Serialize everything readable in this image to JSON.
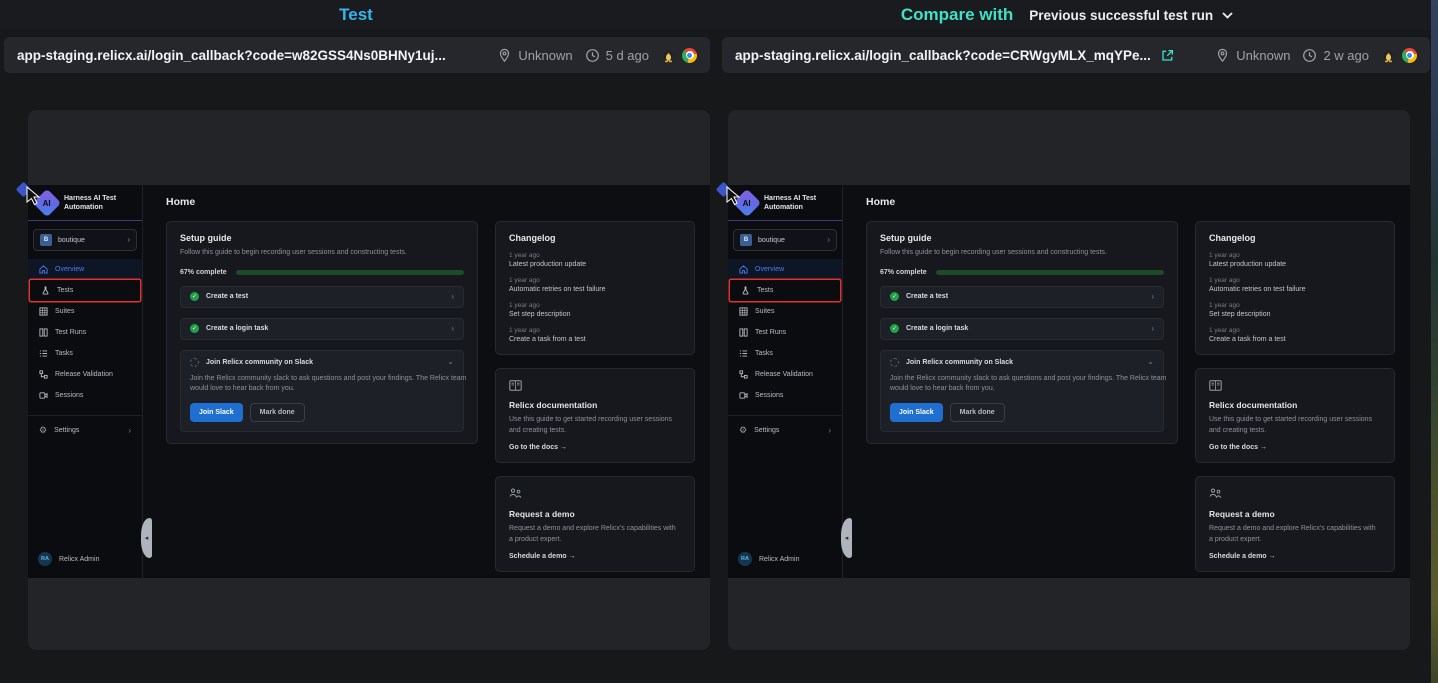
{
  "header": {
    "left_title": "Test",
    "compare_label": "Compare with",
    "compare_value": "Previous successful test run"
  },
  "url_bars": {
    "left": {
      "url": "app-staging.relicx.ai/login_callback?code=w82GSS4Ns0BHNy1uj...",
      "location": "Unknown",
      "age": "5 d ago"
    },
    "right": {
      "url": "app-staging.relicx.ai/login_callback?code=CRWgyMLX_mqYPe...",
      "location": "Unknown",
      "age": "2 w ago"
    }
  },
  "icons": {
    "chevron_right": "›",
    "chevron_down": "⌄",
    "gear": "⚙",
    "check": "✓",
    "collapse_arrow": "◂"
  },
  "colors": {
    "test_title": "#35b6ee",
    "compare_title": "#3fe2c4",
    "highlight_box_red": "#e0332b",
    "progress_green": "#35a74c",
    "primary_button_blue": "#1e6fd0",
    "active_nav_blue": "#467ff2"
  },
  "app": {
    "brand": {
      "line1": "Harness AI Test",
      "line2": "Automation"
    },
    "project": {
      "initial": "B",
      "name": "boutique"
    },
    "nav": [
      {
        "label": "Overview"
      },
      {
        "label": "Tests"
      },
      {
        "label": "Suites"
      },
      {
        "label": "Test Runs"
      },
      {
        "label": "Tasks"
      },
      {
        "label": "Release Validation"
      },
      {
        "label": "Sessions"
      }
    ],
    "settings_label": "Settings",
    "user": {
      "initials": "RA",
      "name": "Relicx Admin"
    },
    "page_title": "Home",
    "setup_guide": {
      "title": "Setup guide",
      "description": "Follow this guide to begin recording user sessions and constructing tests.",
      "progress_label": "67% complete",
      "progress_percent": 67,
      "step1": "Create a test",
      "step2": "Create a login task",
      "step3": "Join Relicx community on Slack",
      "slack_description": "Join the Relicx community slack to ask questions and post your findings. The Relicx team would love to hear back from you.",
      "join_button": "Join Slack",
      "mark_done_button": "Mark done"
    },
    "changelog": {
      "title": "Changelog",
      "entries": [
        {
          "age": "1 year ago",
          "text": "Latest production update"
        },
        {
          "age": "1 year ago",
          "text": "Automatic retries on test failure"
        },
        {
          "age": "1 year ago",
          "text": "Set step description"
        },
        {
          "age": "1 year ago",
          "text": "Create a task from a test"
        }
      ]
    },
    "docs_card": {
      "title": "Relicx documentation",
      "description": "Use this guide to get started recording user sessions and creating tests.",
      "link": "Go to the docs →"
    },
    "demo_card": {
      "title": "Request a demo",
      "description": "Request a demo and explore Relicx's capabilities with a product expert.",
      "link": "Schedule a demo →"
    }
  }
}
